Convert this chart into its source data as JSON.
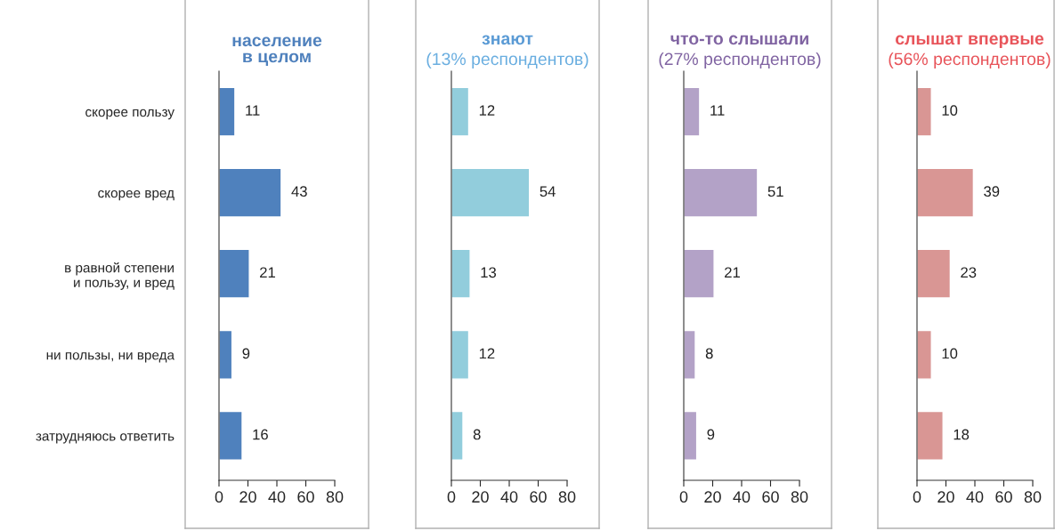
{
  "chart_data": [
    {
      "type": "bar",
      "orientation": "horizontal",
      "title": "население\nв целом",
      "categories": [
        "скорее пользу",
        "скорее вред",
        "в равной степени\nи пользу, и вред",
        "ни пользы, ни вреда",
        "затрудняюсь ответить"
      ],
      "series": [
        {
          "color": "#4f81bd",
          "values": [
            11,
            43,
            21,
            9,
            16
          ]
        }
      ],
      "xlim": [
        0,
        80
      ],
      "xticks": [
        0,
        20,
        40,
        60,
        80
      ],
      "data_labels": true
    },
    {
      "type": "bar",
      "orientation": "horizontal",
      "title": "знают",
      "subtitle": "(13% респондентов)",
      "categories": [
        null,
        null,
        null,
        null,
        null
      ],
      "series": [
        {
          "color": "#92cddc",
          "values": [
            12,
            54,
            13,
            12,
            8
          ]
        }
      ],
      "xlim": [
        0,
        80
      ],
      "xticks": [
        0,
        20,
        40,
        60,
        80
      ],
      "data_labels": true,
      "tick_labels": "x"
    },
    {
      "type": "bar",
      "orientation": "horizontal",
      "title": "что-то слышали",
      "subtitle": "(27% респондентов)",
      "categories": [
        null,
        null,
        null,
        null,
        null
      ],
      "series": [
        {
          "color": "#b3a2c7",
          "values": [
            11,
            51,
            21,
            8,
            9
          ]
        }
      ],
      "xlim": [
        0,
        80
      ],
      "xticks": [
        0,
        20,
        40,
        60,
        80
      ],
      "data_labels": true,
      "tick_labels": "x"
    },
    {
      "type": "bar",
      "orientation": "horizontal",
      "title": "слышат впервые",
      "subtitle": "(56% респондентов)",
      "categories": [
        null,
        null,
        null,
        null,
        null
      ],
      "series": [
        {
          "color": "#d99694",
          "values": [
            10,
            39,
            23,
            10,
            18
          ]
        }
      ],
      "xlim": [
        0,
        80
      ],
      "xticks": [
        0,
        20,
        40,
        60,
        80
      ],
      "data_labels": true,
      "tick_labels": "x"
    }
  ]
}
